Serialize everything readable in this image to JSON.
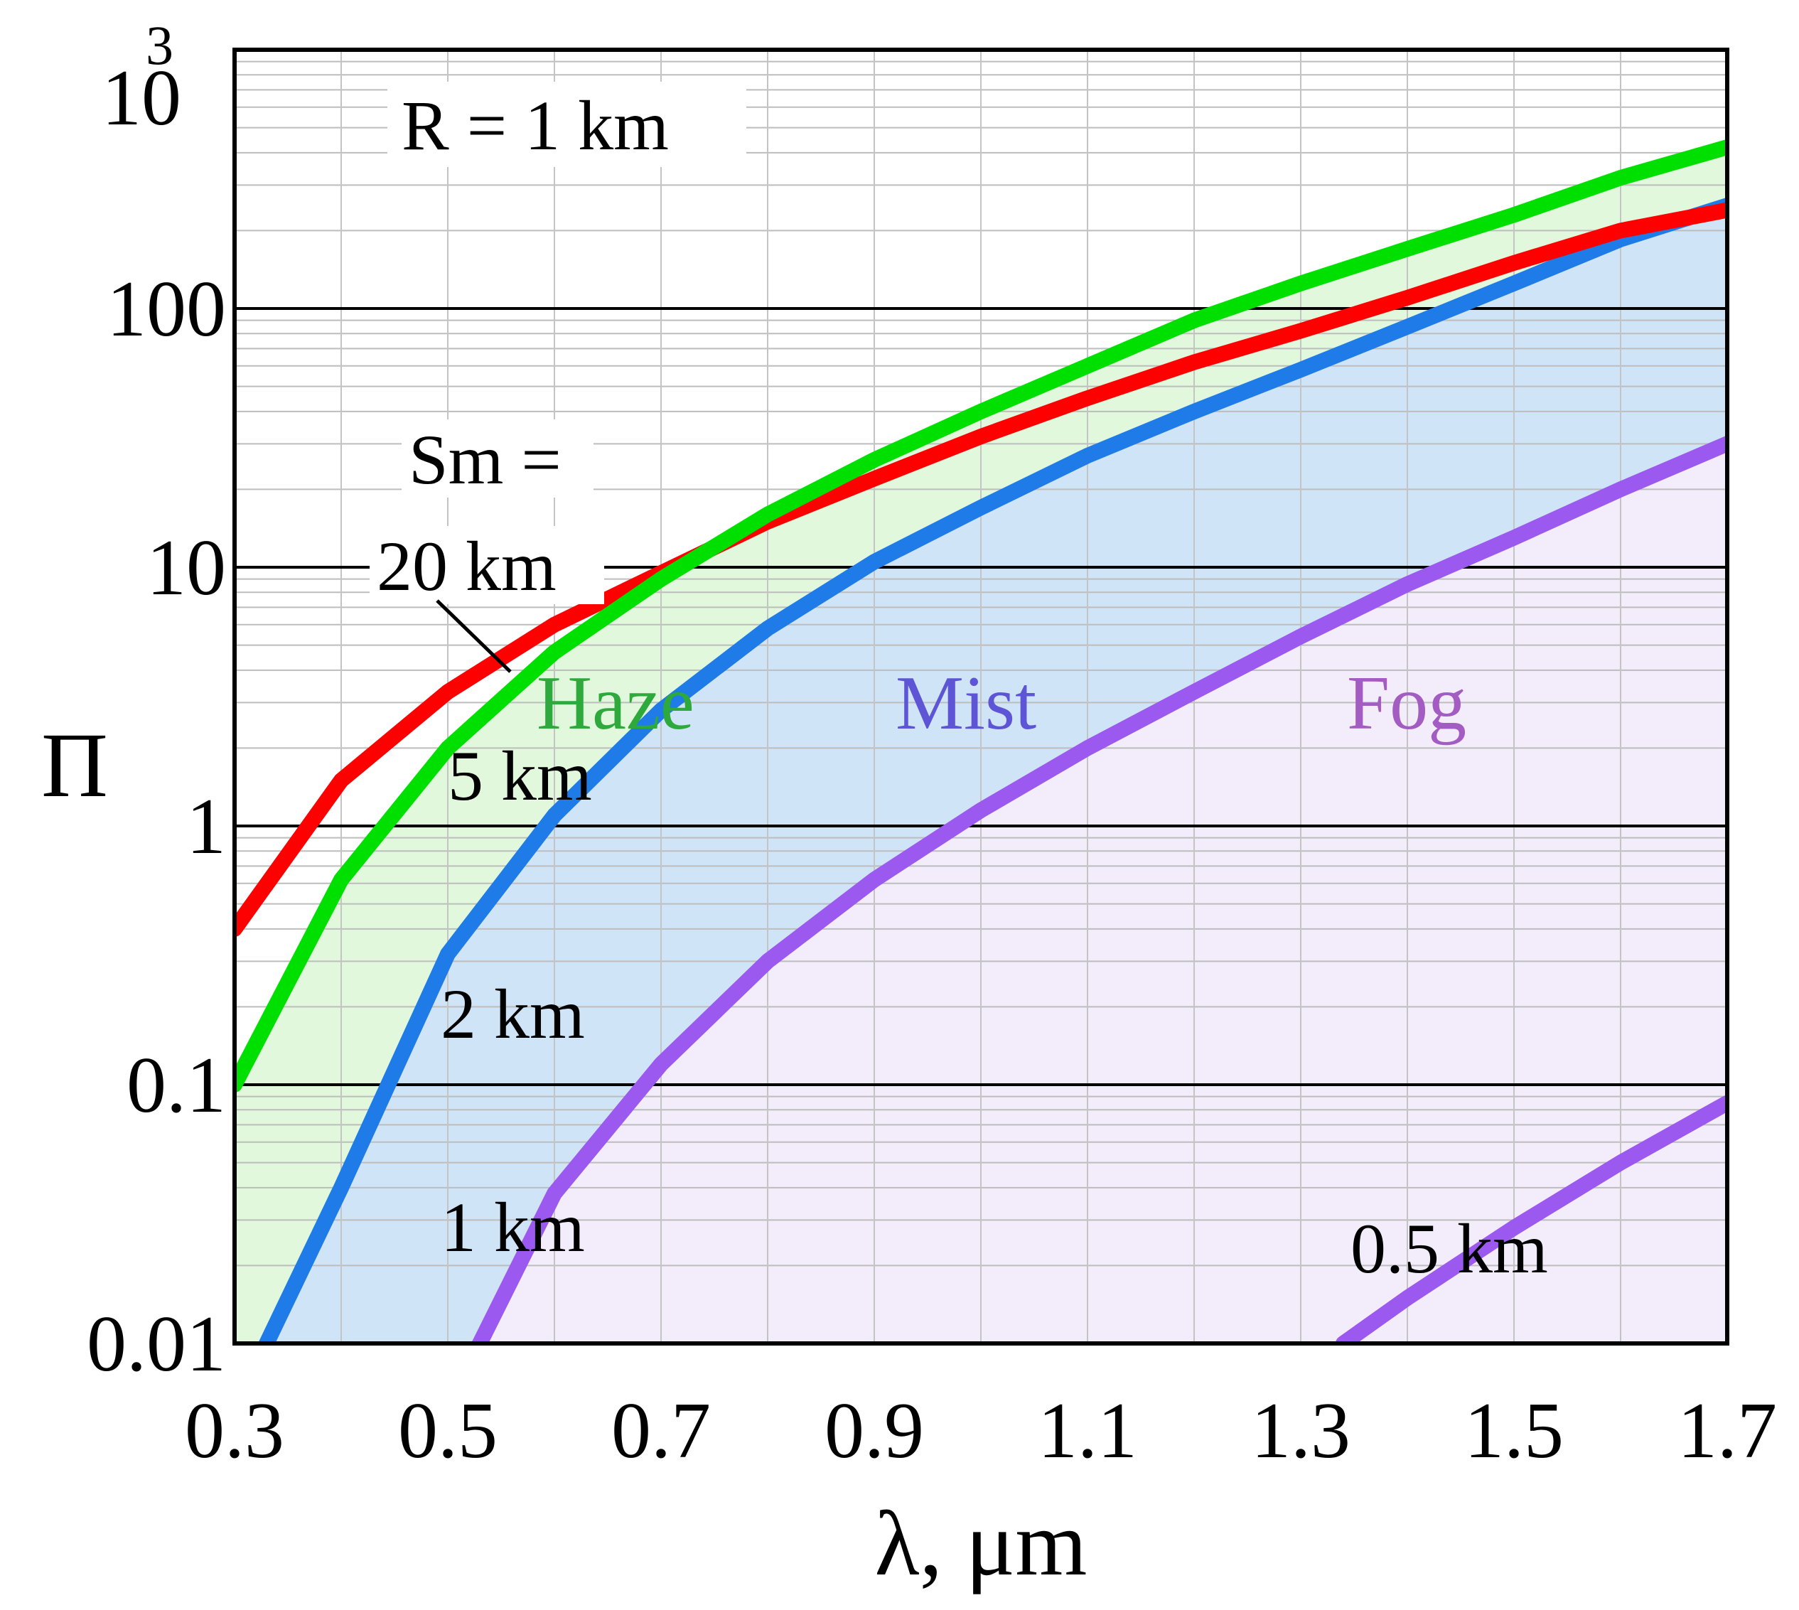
{
  "chart_data": {
    "type": "line",
    "title": "",
    "xlabel": "λ, μm",
    "ylabel": "Π",
    "xlim": [
      0.3,
      1.7
    ],
    "ylim": [
      0.01,
      1000
    ],
    "yscale": "log",
    "x_ticks": [
      "0.3",
      "0.5",
      "0.7",
      "0.9",
      "1.1",
      "1.3",
      "1.5",
      "1.7"
    ],
    "y_ticks": [
      {
        "value": 0.01,
        "label": "0.01",
        "sup": ""
      },
      {
        "value": 0.1,
        "label": "0.1",
        "sup": ""
      },
      {
        "value": 1,
        "label": "1",
        "sup": ""
      },
      {
        "value": 10,
        "label": "10",
        "sup": ""
      },
      {
        "value": 100,
        "label": "100",
        "sup": ""
      },
      {
        "value": 1000,
        "label": "10",
        "sup": "3"
      }
    ],
    "grid": true,
    "annotations": {
      "range": "R = 1 km",
      "sm_prefix": "Sm =",
      "label_20": "20 km",
      "label_5": "5 km",
      "label_2": "2 km",
      "label_1": "1 km",
      "label_05": "0.5 km"
    },
    "regions": [
      {
        "name": "Haze",
        "color": "#2eaa3c",
        "fill": "#e2f8dc",
        "between": [
          "Sm = 5 km",
          "Sm = 2 km"
        ]
      },
      {
        "name": "Mist",
        "color": "#5d55d6",
        "fill": "#cfe4f7",
        "between": [
          "Sm = 2 km",
          "Sm = 1 km"
        ]
      },
      {
        "name": "Fog",
        "color": "#a35cc2",
        "fill": "#f3ecfb",
        "between": [
          "Sm = 1 km",
          "bottom"
        ]
      }
    ],
    "series": [
      {
        "id": "s20",
        "color": "#ff0000",
        "x": [
          0.3,
          0.4,
          0.5,
          0.6,
          0.7,
          0.8,
          0.9,
          1.0,
          1.1,
          1.2,
          1.3,
          1.4,
          1.5,
          1.6,
          1.7
        ],
        "y": [
          0.4,
          1.5,
          3.3,
          6,
          9.5,
          15,
          22,
          32,
          45,
          62,
          82,
          110,
          150,
          200,
          240
        ]
      },
      {
        "id": "s5",
        "color": "#00e000",
        "x": [
          0.3,
          0.4,
          0.5,
          0.6,
          0.7,
          0.8,
          0.9,
          1.0,
          1.1,
          1.2,
          1.3,
          1.4,
          1.5,
          1.6,
          1.7
        ],
        "y": [
          0.1,
          0.62,
          2.0,
          4.7,
          9.0,
          16,
          26,
          40,
          60,
          90,
          125,
          170,
          230,
          320,
          420
        ]
      },
      {
        "id": "s2",
        "color": "#1e7be8",
        "x": [
          0.33,
          0.4,
          0.5,
          0.6,
          0.7,
          0.8,
          0.9,
          1.0,
          1.1,
          1.2,
          1.3,
          1.4,
          1.5,
          1.6,
          1.7
        ],
        "y": [
          0.01,
          0.04,
          0.32,
          1.1,
          2.8,
          5.8,
          10.5,
          17,
          27,
          40,
          58,
          85,
          125,
          185,
          250
        ]
      },
      {
        "id": "s1",
        "color": "#9b59f0",
        "x": [
          0.53,
          0.6,
          0.7,
          0.8,
          0.9,
          1.0,
          1.1,
          1.2,
          1.3,
          1.4,
          1.5,
          1.6,
          1.7
        ],
        "y": [
          0.01,
          0.038,
          0.12,
          0.3,
          0.62,
          1.15,
          2.0,
          3.3,
          5.4,
          8.6,
          13,
          20,
          30
        ]
      },
      {
        "id": "s05",
        "color": "#9b59f0",
        "x": [
          1.34,
          1.4,
          1.5,
          1.6,
          1.7
        ],
        "y": [
          0.01,
          0.015,
          0.028,
          0.05,
          0.085
        ]
      }
    ]
  }
}
